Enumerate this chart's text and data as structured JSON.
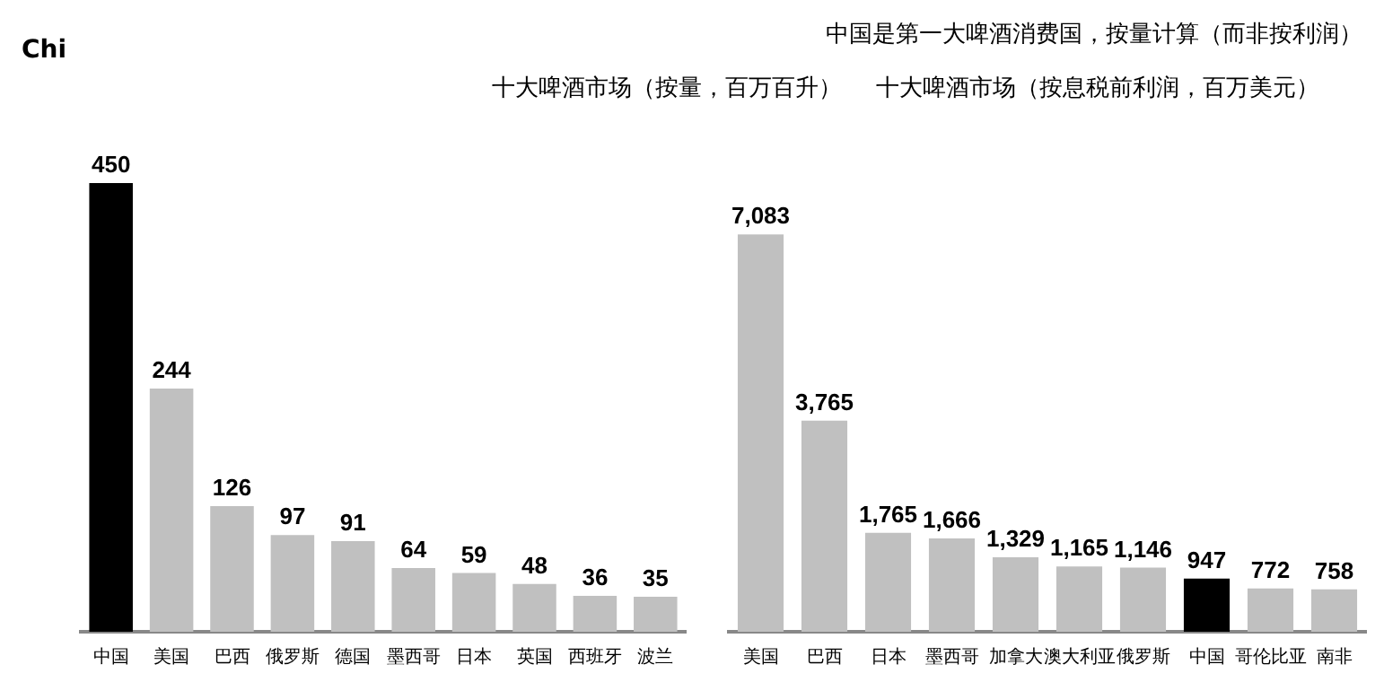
{
  "chart_data": [
    {
      "type": "bar",
      "title": "十大啤酒市场（按量，百万百升）",
      "annotations": [
        "Chi"
      ],
      "categories": [
        "中国",
        "美国",
        "巴西",
        "俄罗斯",
        "德国",
        "墨西哥",
        "日本",
        "英国",
        "西班牙",
        "波兰"
      ],
      "values": [
        450,
        244,
        126,
        97,
        91,
        64,
        59,
        48,
        36,
        35
      ],
      "colors": [
        "#000000",
        "#c0c0c0",
        "#c0c0c0",
        "#c0c0c0",
        "#c0c0c0",
        "#c0c0c0",
        "#c0c0c0",
        "#c0c0c0",
        "#c0c0c0",
        "#c0c0c0"
      ],
      "tick_labels": "x",
      "grid": false,
      "legend": false,
      "data_labels": true
    },
    {
      "type": "bar",
      "title": "十大啤酒市场（按息税前利润，百万美元）",
      "subtitle": "中国是第一大啤酒消费国，按量计算（而非按利润）",
      "categories": [
        "美国",
        "巴西",
        "日本",
        "墨西哥",
        "加拿大",
        "澳大利亚",
        "俄罗斯",
        "中国",
        "哥伦比亚",
        "南非"
      ],
      "values": [
        7083,
        3765,
        1765,
        1666,
        1329,
        1165,
        1146,
        947,
        772,
        758
      ],
      "value_labels": [
        "7,083",
        "3,765",
        "1,765",
        "1,666",
        "1,329",
        "1,165",
        "1,146",
        "947",
        "772",
        "758"
      ],
      "colors": [
        "#c0c0c0",
        "#c0c0c0",
        "#c0c0c0",
        "#c0c0c0",
        "#c0c0c0",
        "#c0c0c0",
        "#c0c0c0",
        "#000000",
        "#c0c0c0",
        "#c0c0c0"
      ],
      "tick_labels": "x",
      "grid": false,
      "legend": false
    }
  ]
}
